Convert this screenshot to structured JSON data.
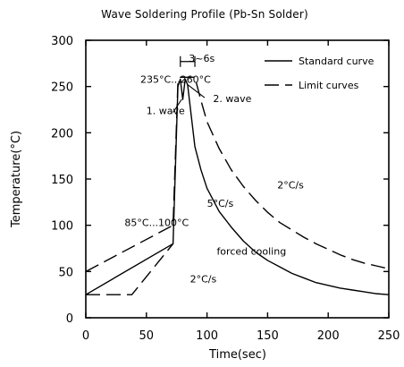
{
  "chart_data": {
    "type": "line",
    "title": "Wave Soldering Profile (Pb-Sn Solder)",
    "xlabel": "Time(sec)",
    "ylabel": "Temperature(°C)",
    "xlim": [
      0,
      250
    ],
    "ylim": [
      0,
      300
    ],
    "x_ticks": [
      0,
      50,
      100,
      150,
      200,
      250
    ],
    "y_ticks": [
      0,
      50,
      100,
      150,
      200,
      250,
      300
    ],
    "grid": false,
    "legend_position": "top-right",
    "legend": [
      {
        "name": "Standard curve",
        "style": "solid"
      },
      {
        "name": "Limit curves",
        "style": "dashed"
      }
    ],
    "series": [
      {
        "name": "Standard curve",
        "style": "solid",
        "points": [
          [
            0,
            25
          ],
          [
            72,
            80
          ],
          [
            76,
            250
          ],
          [
            78,
            258
          ],
          [
            80,
            236
          ],
          [
            82,
            258
          ],
          [
            84,
            252
          ],
          [
            90,
            185
          ],
          [
            95,
            160
          ],
          [
            100,
            140
          ],
          [
            110,
            115
          ],
          [
            120,
            98
          ],
          [
            130,
            83
          ],
          [
            140,
            71
          ],
          [
            150,
            62
          ],
          [
            160,
            55
          ],
          [
            170,
            48
          ],
          [
            180,
            43
          ],
          [
            190,
            38
          ],
          [
            200,
            35
          ],
          [
            210,
            32
          ],
          [
            220,
            30
          ],
          [
            230,
            28
          ],
          [
            240,
            26
          ],
          [
            250,
            25
          ]
        ]
      },
      {
        "name": "Limit curve (upper)",
        "style": "dashed",
        "points": [
          [
            0,
            50
          ],
          [
            72,
            100
          ],
          [
            76,
            255
          ],
          [
            78,
            260
          ],
          [
            90,
            260
          ],
          [
            95,
            235
          ],
          [
            100,
            212
          ],
          [
            110,
            183
          ],
          [
            120,
            160
          ],
          [
            130,
            142
          ],
          [
            140,
            127
          ],
          [
            150,
            114
          ],
          [
            160,
            103
          ],
          [
            170,
            95
          ],
          [
            180,
            87
          ],
          [
            190,
            80
          ],
          [
            200,
            74
          ],
          [
            210,
            68
          ],
          [
            220,
            63
          ],
          [
            230,
            59
          ],
          [
            240,
            56
          ],
          [
            250,
            53
          ]
        ]
      },
      {
        "name": "Limit curve (lower)",
        "style": "dashed",
        "points": [
          [
            0,
            25
          ],
          [
            38,
            25
          ],
          [
            72,
            80
          ]
        ]
      }
    ],
    "annotations": [
      {
        "id": "duration",
        "text": "3~6s",
        "x": 85,
        "y": 277
      },
      {
        "id": "peak-range",
        "text": "235°C...260°C",
        "x": 45,
        "y": 254
      },
      {
        "id": "wave-1",
        "text": "1. wave",
        "x": 50,
        "y": 220
      },
      {
        "id": "wave-2",
        "text": "2. wave",
        "x": 105,
        "y": 233
      },
      {
        "id": "preheat-range",
        "text": "85°C...100°C",
        "x": 32,
        "y": 99
      },
      {
        "id": "slope-5",
        "text": "5°C/s",
        "x": 100,
        "y": 120
      },
      {
        "id": "slope-2-upper",
        "text": "2°C/s",
        "x": 158,
        "y": 140
      },
      {
        "id": "forced-cooling",
        "text": "forced cooling",
        "x": 108,
        "y": 68
      },
      {
        "id": "slope-2-lower",
        "text": "2°C/s",
        "x": 86,
        "y": 38
      }
    ]
  }
}
